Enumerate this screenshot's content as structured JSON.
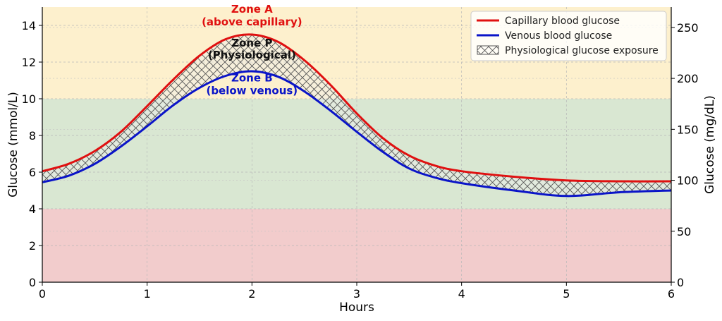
{
  "chart_data": {
    "type": "line",
    "xlabel": "Hours",
    "ylabel": "Glucose (mmol/L)",
    "ylabel_right": "Glucose (mg/dL)",
    "xlim": [
      0,
      6
    ],
    "ylim": [
      0,
      15
    ],
    "ylim_right": [
      0,
      270
    ],
    "x_ticks": [
      0,
      1,
      2,
      3,
      4,
      5,
      6
    ],
    "y_ticks": [
      0,
      2,
      4,
      6,
      8,
      10,
      12,
      14
    ],
    "y_ticks_right": [
      0,
      50,
      100,
      150,
      200,
      250
    ],
    "grid": true,
    "bands": [
      {
        "name": "hypoglycemia-band",
        "from": 0,
        "to": 4,
        "color": "#f2cccc"
      },
      {
        "name": "target-band",
        "from": 4,
        "to": 10,
        "color": "#d9e7d2"
      },
      {
        "name": "hyperglycemia-band",
        "from": 10,
        "to": 15,
        "color": "#fdf0cd"
      }
    ],
    "series": [
      {
        "name": "Capillary blood glucose",
        "color": "#e01010",
        "x": [
          0,
          0.25,
          0.5,
          0.75,
          1.0,
          1.25,
          1.5,
          1.75,
          2.0,
          2.25,
          2.5,
          2.75,
          3.0,
          3.25,
          3.5,
          3.75,
          4.0,
          4.5,
          5.0,
          5.5,
          6.0
        ],
        "values": [
          6.05,
          6.45,
          7.15,
          8.2,
          9.6,
          11.05,
          12.35,
          13.25,
          13.5,
          13.1,
          12.1,
          10.75,
          9.2,
          7.85,
          6.9,
          6.35,
          6.05,
          5.75,
          5.55,
          5.5,
          5.5
        ]
      },
      {
        "name": "Venous blood glucose",
        "color": "#0a14c8",
        "x": [
          0,
          0.25,
          0.5,
          0.75,
          1.0,
          1.25,
          1.5,
          1.75,
          2.0,
          2.25,
          2.5,
          2.75,
          3.0,
          3.25,
          3.5,
          3.75,
          4.0,
          4.5,
          5.0,
          5.5,
          6.0
        ],
        "values": [
          5.45,
          5.8,
          6.45,
          7.4,
          8.5,
          9.65,
          10.6,
          11.25,
          11.5,
          11.2,
          10.4,
          9.35,
          8.2,
          7.1,
          6.2,
          5.7,
          5.4,
          5.0,
          4.7,
          4.9,
          5.0
        ]
      }
    ],
    "fill": {
      "name": "Physiological glucose exposure",
      "between": [
        "Venous blood glucose",
        "Capillary blood glucose"
      ],
      "hatch": "x"
    },
    "legend": {
      "position": "top-right",
      "entries": [
        "Capillary blood glucose",
        "Venous blood glucose",
        "Physiological glucose exposure"
      ]
    },
    "annotations": [
      {
        "line1": "Zone A",
        "line2": "(above capillary)",
        "x": 2.0,
        "y1": 14.7,
        "y2": 14.0,
        "color": "#e01010"
      },
      {
        "line1": "Zone P",
        "line2": "(Physiological)",
        "x": 2.0,
        "y1": 12.85,
        "y2": 12.2,
        "color": "#111111"
      },
      {
        "line1": "Zone B",
        "line2": "(below venous)",
        "x": 2.0,
        "y1": 10.95,
        "y2": 10.25,
        "color": "#0a14c8"
      }
    ]
  }
}
